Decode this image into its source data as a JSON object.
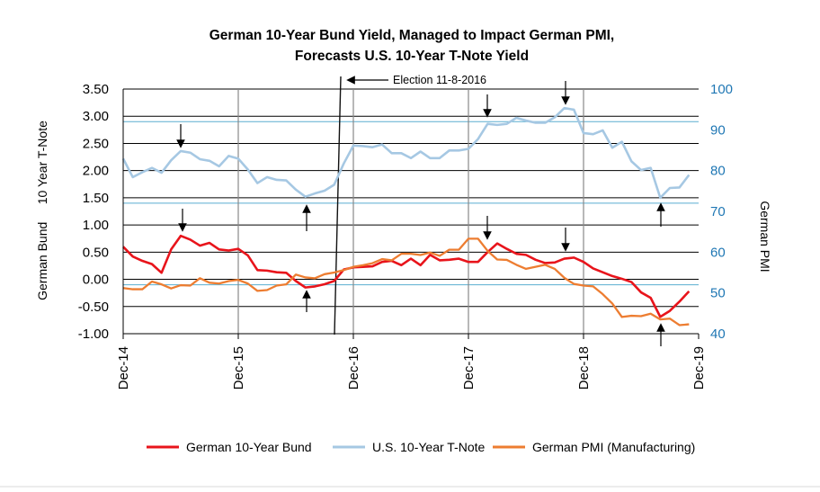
{
  "chart_data": {
    "type": "line",
    "title_line1": "German 10-Year Bund Yield, Managed to Impact German PMI,",
    "title_line2": "Forecasts U.S. 10-Year T-Note Yield",
    "ylabel_left": "German Bund     10 Year T-Note",
    "ylabel_right": "German PMI",
    "y_left": {
      "min": -1.0,
      "max": 3.5,
      "ticks": [
        "3.50",
        "3.00",
        "2.50",
        "2.00",
        "1.50",
        "1.00",
        "0.50",
        "0.00",
        "-0.50",
        "-1.00"
      ]
    },
    "y_right": {
      "min": 40,
      "max": 100,
      "ticks": [
        "100",
        "90",
        "80",
        "70",
        "60",
        "50",
        "40"
      ]
    },
    "x_ticks": [
      "Dec-14",
      "Dec-15",
      "Dec-16",
      "Dec-17",
      "Dec-18",
      "Dec-19"
    ],
    "x_range": [
      0,
      60
    ],
    "annotation": "Election 11-8-2016",
    "series": [
      {
        "name": "German 10-Year Bund",
        "axis": "left",
        "color": "#e8141b",
        "values": [
          [
            0,
            0.6
          ],
          [
            1,
            0.42
          ],
          [
            2,
            0.34
          ],
          [
            3,
            0.28
          ],
          [
            4,
            0.12
          ],
          [
            5,
            0.55
          ],
          [
            6,
            0.8
          ],
          [
            7,
            0.73
          ],
          [
            8,
            0.62
          ],
          [
            9,
            0.67
          ],
          [
            10,
            0.55
          ],
          [
            11,
            0.53
          ],
          [
            12,
            0.56
          ],
          [
            13,
            0.44
          ],
          [
            14,
            0.17
          ],
          [
            15,
            0.16
          ],
          [
            16,
            0.13
          ],
          [
            17,
            0.12
          ],
          [
            18,
            -0.03
          ],
          [
            19,
            -0.15
          ],
          [
            20,
            -0.13
          ],
          [
            21,
            -0.09
          ],
          [
            22,
            -0.03
          ],
          [
            23,
            0.18
          ],
          [
            24,
            0.22
          ],
          [
            25,
            0.23
          ],
          [
            26,
            0.24
          ],
          [
            27,
            0.32
          ],
          [
            28,
            0.34
          ],
          [
            29,
            0.26
          ],
          [
            30,
            0.38
          ],
          [
            31,
            0.26
          ],
          [
            32,
            0.45
          ],
          [
            33,
            0.35
          ],
          [
            34,
            0.36
          ],
          [
            35,
            0.38
          ],
          [
            36,
            0.32
          ],
          [
            37,
            0.32
          ],
          [
            38,
            0.5
          ],
          [
            39,
            0.66
          ],
          [
            40,
            0.56
          ],
          [
            41,
            0.47
          ],
          [
            42,
            0.45
          ],
          [
            43,
            0.36
          ],
          [
            44,
            0.3
          ],
          [
            45,
            0.31
          ],
          [
            46,
            0.38
          ],
          [
            47,
            0.4
          ],
          [
            48,
            0.32
          ],
          [
            49,
            0.2
          ],
          [
            50,
            0.13
          ],
          [
            51,
            0.06
          ],
          [
            52,
            0.01
          ],
          [
            53,
            -0.05
          ],
          [
            54,
            -0.24
          ],
          [
            55,
            -0.34
          ],
          [
            56,
            -0.69
          ],
          [
            57,
            -0.58
          ],
          [
            58,
            -0.41
          ],
          [
            59,
            -0.22
          ]
        ]
      },
      {
        "name": "U.S. 10-Year T-Note",
        "axis": "left",
        "color": "#a6c8e3",
        "values": [
          [
            0,
            2.22
          ],
          [
            1,
            1.88
          ],
          [
            2,
            1.97
          ],
          [
            3,
            2.05
          ],
          [
            4,
            1.96
          ],
          [
            5,
            2.19
          ],
          [
            6,
            2.36
          ],
          [
            7,
            2.33
          ],
          [
            8,
            2.21
          ],
          [
            9,
            2.18
          ],
          [
            10,
            2.08
          ],
          [
            11,
            2.27
          ],
          [
            12,
            2.22
          ],
          [
            13,
            2.02
          ],
          [
            14,
            1.77
          ],
          [
            15,
            1.88
          ],
          [
            16,
            1.83
          ],
          [
            17,
            1.82
          ],
          [
            18,
            1.65
          ],
          [
            19,
            1.52
          ],
          [
            20,
            1.58
          ],
          [
            21,
            1.63
          ],
          [
            22,
            1.74
          ],
          [
            23,
            2.13
          ],
          [
            24,
            2.46
          ],
          [
            25,
            2.45
          ],
          [
            26,
            2.43
          ],
          [
            27,
            2.48
          ],
          [
            28,
            2.32
          ],
          [
            29,
            2.32
          ],
          [
            30,
            2.23
          ],
          [
            31,
            2.35
          ],
          [
            32,
            2.23
          ],
          [
            33,
            2.23
          ],
          [
            34,
            2.37
          ],
          [
            35,
            2.37
          ],
          [
            36,
            2.4
          ],
          [
            37,
            2.58
          ],
          [
            38,
            2.86
          ],
          [
            39,
            2.84
          ],
          [
            40,
            2.86
          ],
          [
            41,
            2.97
          ],
          [
            42,
            2.92
          ],
          [
            43,
            2.88
          ],
          [
            44,
            2.88
          ],
          [
            45,
            2.98
          ],
          [
            46,
            3.15
          ],
          [
            47,
            3.12
          ],
          [
            48,
            2.69
          ],
          [
            49,
            2.67
          ],
          [
            50,
            2.74
          ],
          [
            51,
            2.42
          ],
          [
            52,
            2.53
          ],
          [
            53,
            2.17
          ],
          [
            54,
            2.01
          ],
          [
            55,
            2.05
          ],
          [
            56,
            1.5
          ],
          [
            57,
            1.68
          ],
          [
            58,
            1.69
          ],
          [
            59,
            1.92
          ]
        ]
      },
      {
        "name": "German PMI (Manufacturing)",
        "axis": "right",
        "color": "#ed7d31",
        "values": [
          [
            0,
            51.2
          ],
          [
            1,
            50.9
          ],
          [
            2,
            50.9
          ],
          [
            3,
            52.8
          ],
          [
            4,
            52.1
          ],
          [
            5,
            51.1
          ],
          [
            6,
            51.9
          ],
          [
            7,
            51.8
          ],
          [
            8,
            53.6
          ],
          [
            9,
            52.5
          ],
          [
            10,
            52.3
          ],
          [
            11,
            52.9
          ],
          [
            12,
            53.2
          ],
          [
            13,
            52.3
          ],
          [
            14,
            50.5
          ],
          [
            15,
            50.7
          ],
          [
            16,
            51.8
          ],
          [
            17,
            52.1
          ],
          [
            18,
            54.5
          ],
          [
            19,
            53.8
          ],
          [
            20,
            53.6
          ],
          [
            21,
            54.6
          ],
          [
            22,
            55.0
          ],
          [
            23,
            55.6
          ],
          [
            24,
            56.4
          ],
          [
            25,
            56.8
          ],
          [
            26,
            57.3
          ],
          [
            27,
            58.3
          ],
          [
            28,
            58.0
          ],
          [
            29,
            59.6
          ],
          [
            30,
            59.6
          ],
          [
            31,
            59.3
          ],
          [
            32,
            59.9
          ],
          [
            33,
            59.1
          ],
          [
            34,
            60.6
          ],
          [
            35,
            60.6
          ],
          [
            36,
            63.3
          ],
          [
            37,
            63.3
          ],
          [
            38,
            60.3
          ],
          [
            39,
            58.2
          ],
          [
            40,
            58.1
          ],
          [
            41,
            56.9
          ],
          [
            42,
            55.9
          ],
          [
            43,
            56.4
          ],
          [
            44,
            56.9
          ],
          [
            45,
            55.9
          ],
          [
            46,
            53.7
          ],
          [
            47,
            52.2
          ],
          [
            48,
            51.8
          ],
          [
            49,
            51.6
          ],
          [
            50,
            49.7
          ],
          [
            51,
            47.4
          ],
          [
            52,
            44.1
          ],
          [
            53,
            44.4
          ],
          [
            54,
            44.3
          ],
          [
            55,
            44.9
          ],
          [
            56,
            43.5
          ],
          [
            57,
            43.7
          ],
          [
            58,
            42.1
          ],
          [
            59,
            42.3
          ]
        ]
      }
    ],
    "vertical_markers": [
      {
        "x": 12,
        "label": "Dec-15"
      },
      {
        "x": 24,
        "label": "Dec-16"
      },
      {
        "x": 36,
        "label": "Dec-17"
      },
      {
        "x": 48,
        "label": "Dec-18"
      }
    ],
    "blue_gridlines_right": [
      92,
      72,
      52
    ]
  }
}
